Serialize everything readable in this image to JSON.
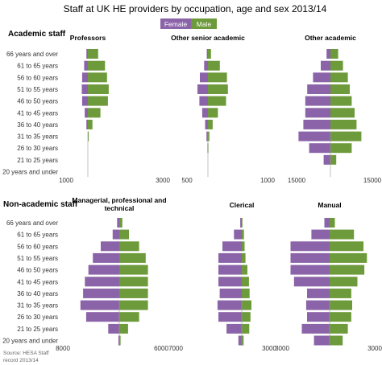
{
  "title": "Staff at UK HE providers by occupation, age and sex 2013/14",
  "legend": [
    {
      "label": "Female",
      "color": "#8B63A8"
    },
    {
      "label": "Male",
      "color": "#6D9A3A"
    }
  ],
  "source": [
    "Source: HESA Staff",
    "record 2013/14"
  ],
  "age_groups": [
    "66 years and over",
    "61 to 65 years",
    "56 to 60 years",
    "51 to 55 years",
    "46 to 50 years",
    "41 to 45 years",
    "36 to 40 years",
    "31 to 35 years",
    "26 to 30 years",
    "21 to 25 years",
    "20 years and under"
  ],
  "sections": [
    {
      "label": "Academic staff"
    },
    {
      "label": "Non-academic staff"
    }
  ],
  "chart_data": [
    {
      "type": "bar",
      "section": "Academic staff",
      "title": "Professors",
      "axis_left_label": "1000",
      "axis_right_label": "3000",
      "categories": [
        "66 years and over",
        "61 to 65 years",
        "56 to 60 years",
        "51 to 55 years",
        "46 to 50 years",
        "41 to 45 years",
        "36 to 40 years",
        "31 to 35 years",
        "26 to 30 years",
        "21 to 25 years",
        "20 years and under"
      ],
      "series": [
        {
          "name": "Female",
          "values": [
            250,
            650,
            1000,
            1050,
            1000,
            550,
            250,
            30,
            10,
            5,
            0
          ]
        },
        {
          "name": "Male",
          "values": [
            1800,
            3000,
            3350,
            3650,
            3500,
            2200,
            800,
            150,
            20,
            5,
            0
          ]
        }
      ]
    },
    {
      "type": "bar",
      "section": "Academic staff",
      "title": "Other senior academic",
      "axis_left_label": "500",
      "axis_right_label": "1000",
      "categories": [
        "66 years and over",
        "61 to 65 years",
        "56 to 60 years",
        "51 to 55 years",
        "46 to 50 years",
        "41 to 45 years",
        "36 to 40 years",
        "31 to 35 years",
        "26 to 30 years",
        "21 to 25 years",
        "20 years and under"
      ],
      "series": [
        {
          "name": "Female",
          "values": [
            120,
            400,
            850,
            1100,
            900,
            600,
            300,
            150,
            50,
            5,
            0
          ]
        },
        {
          "name": "Male",
          "values": [
            320,
            1250,
            2000,
            2100,
            1900,
            1050,
            500,
            150,
            50,
            5,
            0
          ]
        }
      ]
    },
    {
      "type": "bar",
      "section": "Academic staff",
      "title": "Other academic",
      "axis_left_label": "15000",
      "axis_right_label": "15000",
      "categories": [
        "66 years and over",
        "61 to 65 years",
        "56 to 60 years",
        "51 to 55 years",
        "46 to 50 years",
        "41 to 45 years",
        "36 to 40 years",
        "31 to 35 years",
        "26 to 30 years",
        "21 to 25 years",
        "20 years and under"
      ],
      "series": [
        {
          "name": "Female",
          "values": [
            2000,
            5000,
            9000,
            12000,
            13000,
            13000,
            14000,
            16500,
            11000,
            3500,
            100
          ]
        },
        {
          "name": "Male",
          "values": [
            4000,
            6500,
            9000,
            10000,
            11000,
            12500,
            13500,
            16000,
            11000,
            3000,
            100
          ]
        }
      ]
    },
    {
      "type": "bar",
      "section": "Non-academic staff",
      "title": "Managerial, professional and technical",
      "axis_left_label": "8000",
      "axis_right_label": "6000",
      "categories": [
        "66 years and over",
        "61 to 65 years",
        "56 to 60 years",
        "51 to 55 years",
        "46 to 50 years",
        "41 to 45 years",
        "36 to 40 years",
        "31 to 35 years",
        "26 to 30 years",
        "21 to 25 years",
        "20 years and under"
      ],
      "series": [
        {
          "name": "Female",
          "values": [
            500,
            1500,
            4200,
            6000,
            7000,
            7800,
            8200,
            8800,
            7500,
            2500,
            200
          ]
        },
        {
          "name": "Male",
          "values": [
            700,
            2200,
            4500,
            6000,
            6500,
            6500,
            6500,
            6500,
            4500,
            2000,
            300
          ]
        }
      ]
    },
    {
      "type": "bar",
      "section": "Non-academic staff",
      "title": "Clerical",
      "axis_left_label": "7000",
      "axis_right_label": "3000",
      "categories": [
        "66 years and over",
        "61 to 65 years",
        "56 to 60 years",
        "51 to 55 years",
        "46 to 50 years",
        "41 to 45 years",
        "36 to 40 years",
        "31 to 35 years",
        "26 to 30 years",
        "21 to 25 years",
        "20 years and under"
      ],
      "series": [
        {
          "name": "Female",
          "values": [
            500,
            2500,
            6200,
            7500,
            7500,
            7500,
            7100,
            7800,
            7500,
            4900,
            1100
          ]
        },
        {
          "name": "Male",
          "values": [
            200,
            700,
            900,
            1200,
            1800,
            2300,
            2500,
            3100,
            2800,
            2400,
            600
          ]
        }
      ]
    },
    {
      "type": "bar",
      "section": "Non-academic staff",
      "title": "Manual",
      "axis_left_label": "3000",
      "axis_right_label": "3000",
      "categories": [
        "66 years and over",
        "61 to 65 years",
        "56 to 60 years",
        "51 to 55 years",
        "46 to 50 years",
        "41 to 45 years",
        "36 to 40 years",
        "31 to 35 years",
        "26 to 30 years",
        "21 to 25 years",
        "20 years and under"
      ],
      "series": [
        {
          "name": "Female",
          "values": [
            600,
            2100,
            4500,
            4500,
            4500,
            4100,
            2600,
            2700,
            2600,
            3200,
            1800
          ]
        },
        {
          "name": "Male",
          "values": [
            600,
            2800,
            3900,
            4300,
            4000,
            3200,
            2500,
            2600,
            2500,
            2100,
            1500
          ]
        }
      ]
    }
  ]
}
